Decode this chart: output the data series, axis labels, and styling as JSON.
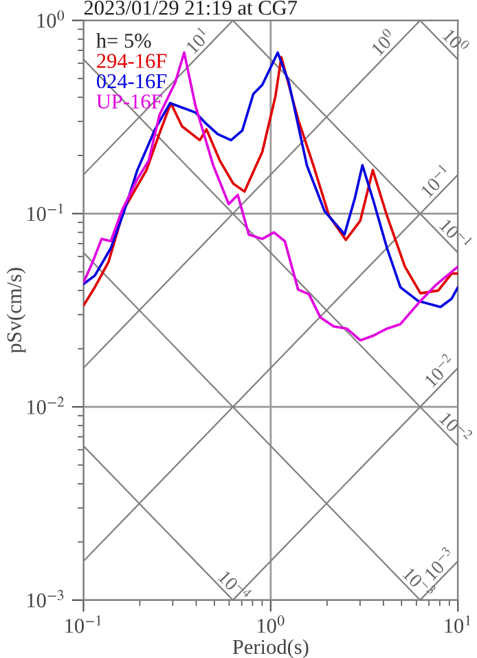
{
  "chart_data": {
    "type": "line",
    "title": "2023/01/29 21:19 at CG7",
    "xlabel": "Period(s)",
    "ylabel": "pSv(cm/s)",
    "legend_title": "h= 5%",
    "legend": "top left",
    "log": "xy",
    "grid": true,
    "xlim": [
      0.1,
      10
    ],
    "ylim": [
      0.001,
      1
    ],
    "xticks": [
      {
        "value": 0.1,
        "label": "10$^{−1}$"
      },
      {
        "value": 1,
        "label": "10$^{0}$"
      },
      {
        "value": 10,
        "label": "10$^{1}$"
      }
    ],
    "yticks": [
      {
        "value": 0.001,
        "label": "10$^{−3}$"
      },
      {
        "value": 0.01,
        "label": "10$^{−2}$"
      },
      {
        "value": 0.1,
        "label": "10$^{−1}$"
      },
      {
        "value": 1,
        "label": "10$^{0}$"
      }
    ],
    "series": [
      {
        "color": "#808080",
        "x": [
          0.1,
          0.628
        ],
        "values": [
          0.159,
          1
        ]
      },
      {
        "color": "#808080",
        "x": [
          0.1,
          6.28
        ],
        "values": [
          0.0159,
          1
        ]
      },
      {
        "color": "#808080",
        "x": [
          0.1,
          10
        ],
        "values": [
          0.00159,
          0.159
        ]
      },
      {
        "color": "#808080",
        "x": [
          0.628,
          10
        ],
        "values": [
          0.001,
          0.0159
        ]
      },
      {
        "color": "#808080",
        "x": [
          6.28,
          10
        ],
        "values": [
          0.001,
          0.00159
        ]
      },
      {
        "color": "#808080",
        "x": [
          6.28,
          10
        ],
        "values": [
          1,
          0.628
        ]
      },
      {
        "color": "#808080",
        "x": [
          0.628,
          10
        ],
        "values": [
          1,
          0.0628
        ]
      },
      {
        "color": "#808080",
        "x": [
          0.1,
          10
        ],
        "values": [
          0.628,
          0.00628
        ]
      },
      {
        "color": "#808080",
        "x": [
          0.1,
          6.28
        ],
        "values": [
          0.0628,
          0.001
        ]
      },
      {
        "color": "#808080",
        "x": [
          0.1,
          0.628
        ],
        "values": [
          0.00628,
          0.001
        ]
      },
      {
        "name": "294-16F",
        "color": "#e00000",
        "x": [
          0.1,
          0.115,
          0.136,
          0.165,
          0.217,
          0.255,
          0.293,
          0.336,
          0.418,
          0.454,
          0.535,
          0.631,
          0.724,
          0.902,
          1.06,
          1.14,
          1.4,
          1.69,
          2.05,
          2.52,
          3.01,
          3.51,
          4.18,
          5.21,
          6.31,
          7.85,
          9.26,
          10
        ],
        "values": [
          0.0334,
          0.0416,
          0.0562,
          0.106,
          0.168,
          0.261,
          0.373,
          0.283,
          0.24,
          0.273,
          0.188,
          0.143,
          0.13,
          0.209,
          0.405,
          0.645,
          0.308,
          0.178,
          0.0973,
          0.0731,
          0.092,
          0.168,
          0.0973,
          0.0532,
          0.0387,
          0.04,
          0.049,
          0.049
        ]
      },
      {
        "name": "024-16F",
        "color": "#0000e0",
        "x": [
          0.1,
          0.115,
          0.14,
          0.165,
          0.194,
          0.242,
          0.29,
          0.396,
          0.454,
          0.521,
          0.614,
          0.705,
          0.808,
          0.902,
          1.09,
          1.25,
          1.56,
          1.94,
          2.48,
          2.82,
          3.09,
          3.55,
          4.18,
          4.93,
          6.14,
          8.07,
          9.26,
          10
        ],
        "values": [
          0.0432,
          0.0478,
          0.0663,
          0.103,
          0.168,
          0.275,
          0.373,
          0.334,
          0.291,
          0.258,
          0.24,
          0.269,
          0.416,
          0.464,
          0.681,
          0.477,
          0.178,
          0.103,
          0.0781,
          0.121,
          0.178,
          0.115,
          0.0663,
          0.0416,
          0.0353,
          0.0329,
          0.0363,
          0.0416
        ]
      },
      {
        "name": "UP-16F",
        "color": "#e000e0",
        "x": [
          0.1,
          0.112,
          0.125,
          0.14,
          0.16,
          0.194,
          0.223,
          0.255,
          0.309,
          0.345,
          0.396,
          0.493,
          0.597,
          0.667,
          0.764,
          0.902,
          1.04,
          1.19,
          1.4,
          1.6,
          1.84,
          2.17,
          2.55,
          3.01,
          3.55,
          4.18,
          4.93,
          6.14,
          7.64,
          10
        ],
        "values": [
          0.044,
          0.0562,
          0.074,
          0.072,
          0.103,
          0.151,
          0.188,
          0.325,
          0.477,
          0.681,
          0.363,
          0.178,
          0.112,
          0.125,
          0.078,
          0.074,
          0.08,
          0.072,
          0.0405,
          0.0383,
          0.0291,
          0.0261,
          0.0254,
          0.0221,
          0.0234,
          0.0254,
          0.0268,
          0.0343,
          0.0428,
          0.0532
        ]
      }
    ],
    "annotations": [
      {
        "text": "10$^{1}$",
        "x": 0.45,
        "y": 0.716
      },
      {
        "text": "10$^{0}$",
        "x": 4.4,
        "y": 0.7
      },
      {
        "text": "10$^{0}$",
        "x": 8.8,
        "y": 0.714
      },
      {
        "text": "10$^{−1}$",
        "x": 8.4,
        "y": 0.134
      },
      {
        "text": "10$^{−1}$",
        "x": 8.8,
        "y": 0.0714
      },
      {
        "text": "10$^{−2}$",
        "x": 8.8,
        "y": 0.014
      },
      {
        "text": "10$^{−2}$",
        "x": 8.8,
        "y": 0.00714
      },
      {
        "text": "10$^{−3}$",
        "x": 8.8,
        "y": 0.0014
      },
      {
        "text": "10$^{−3}$",
        "x": 5.6,
        "y": 0.00112
      },
      {
        "text": "10$^{−4}$",
        "x": 0.58,
        "y": 0.00108
      }
    ]
  }
}
